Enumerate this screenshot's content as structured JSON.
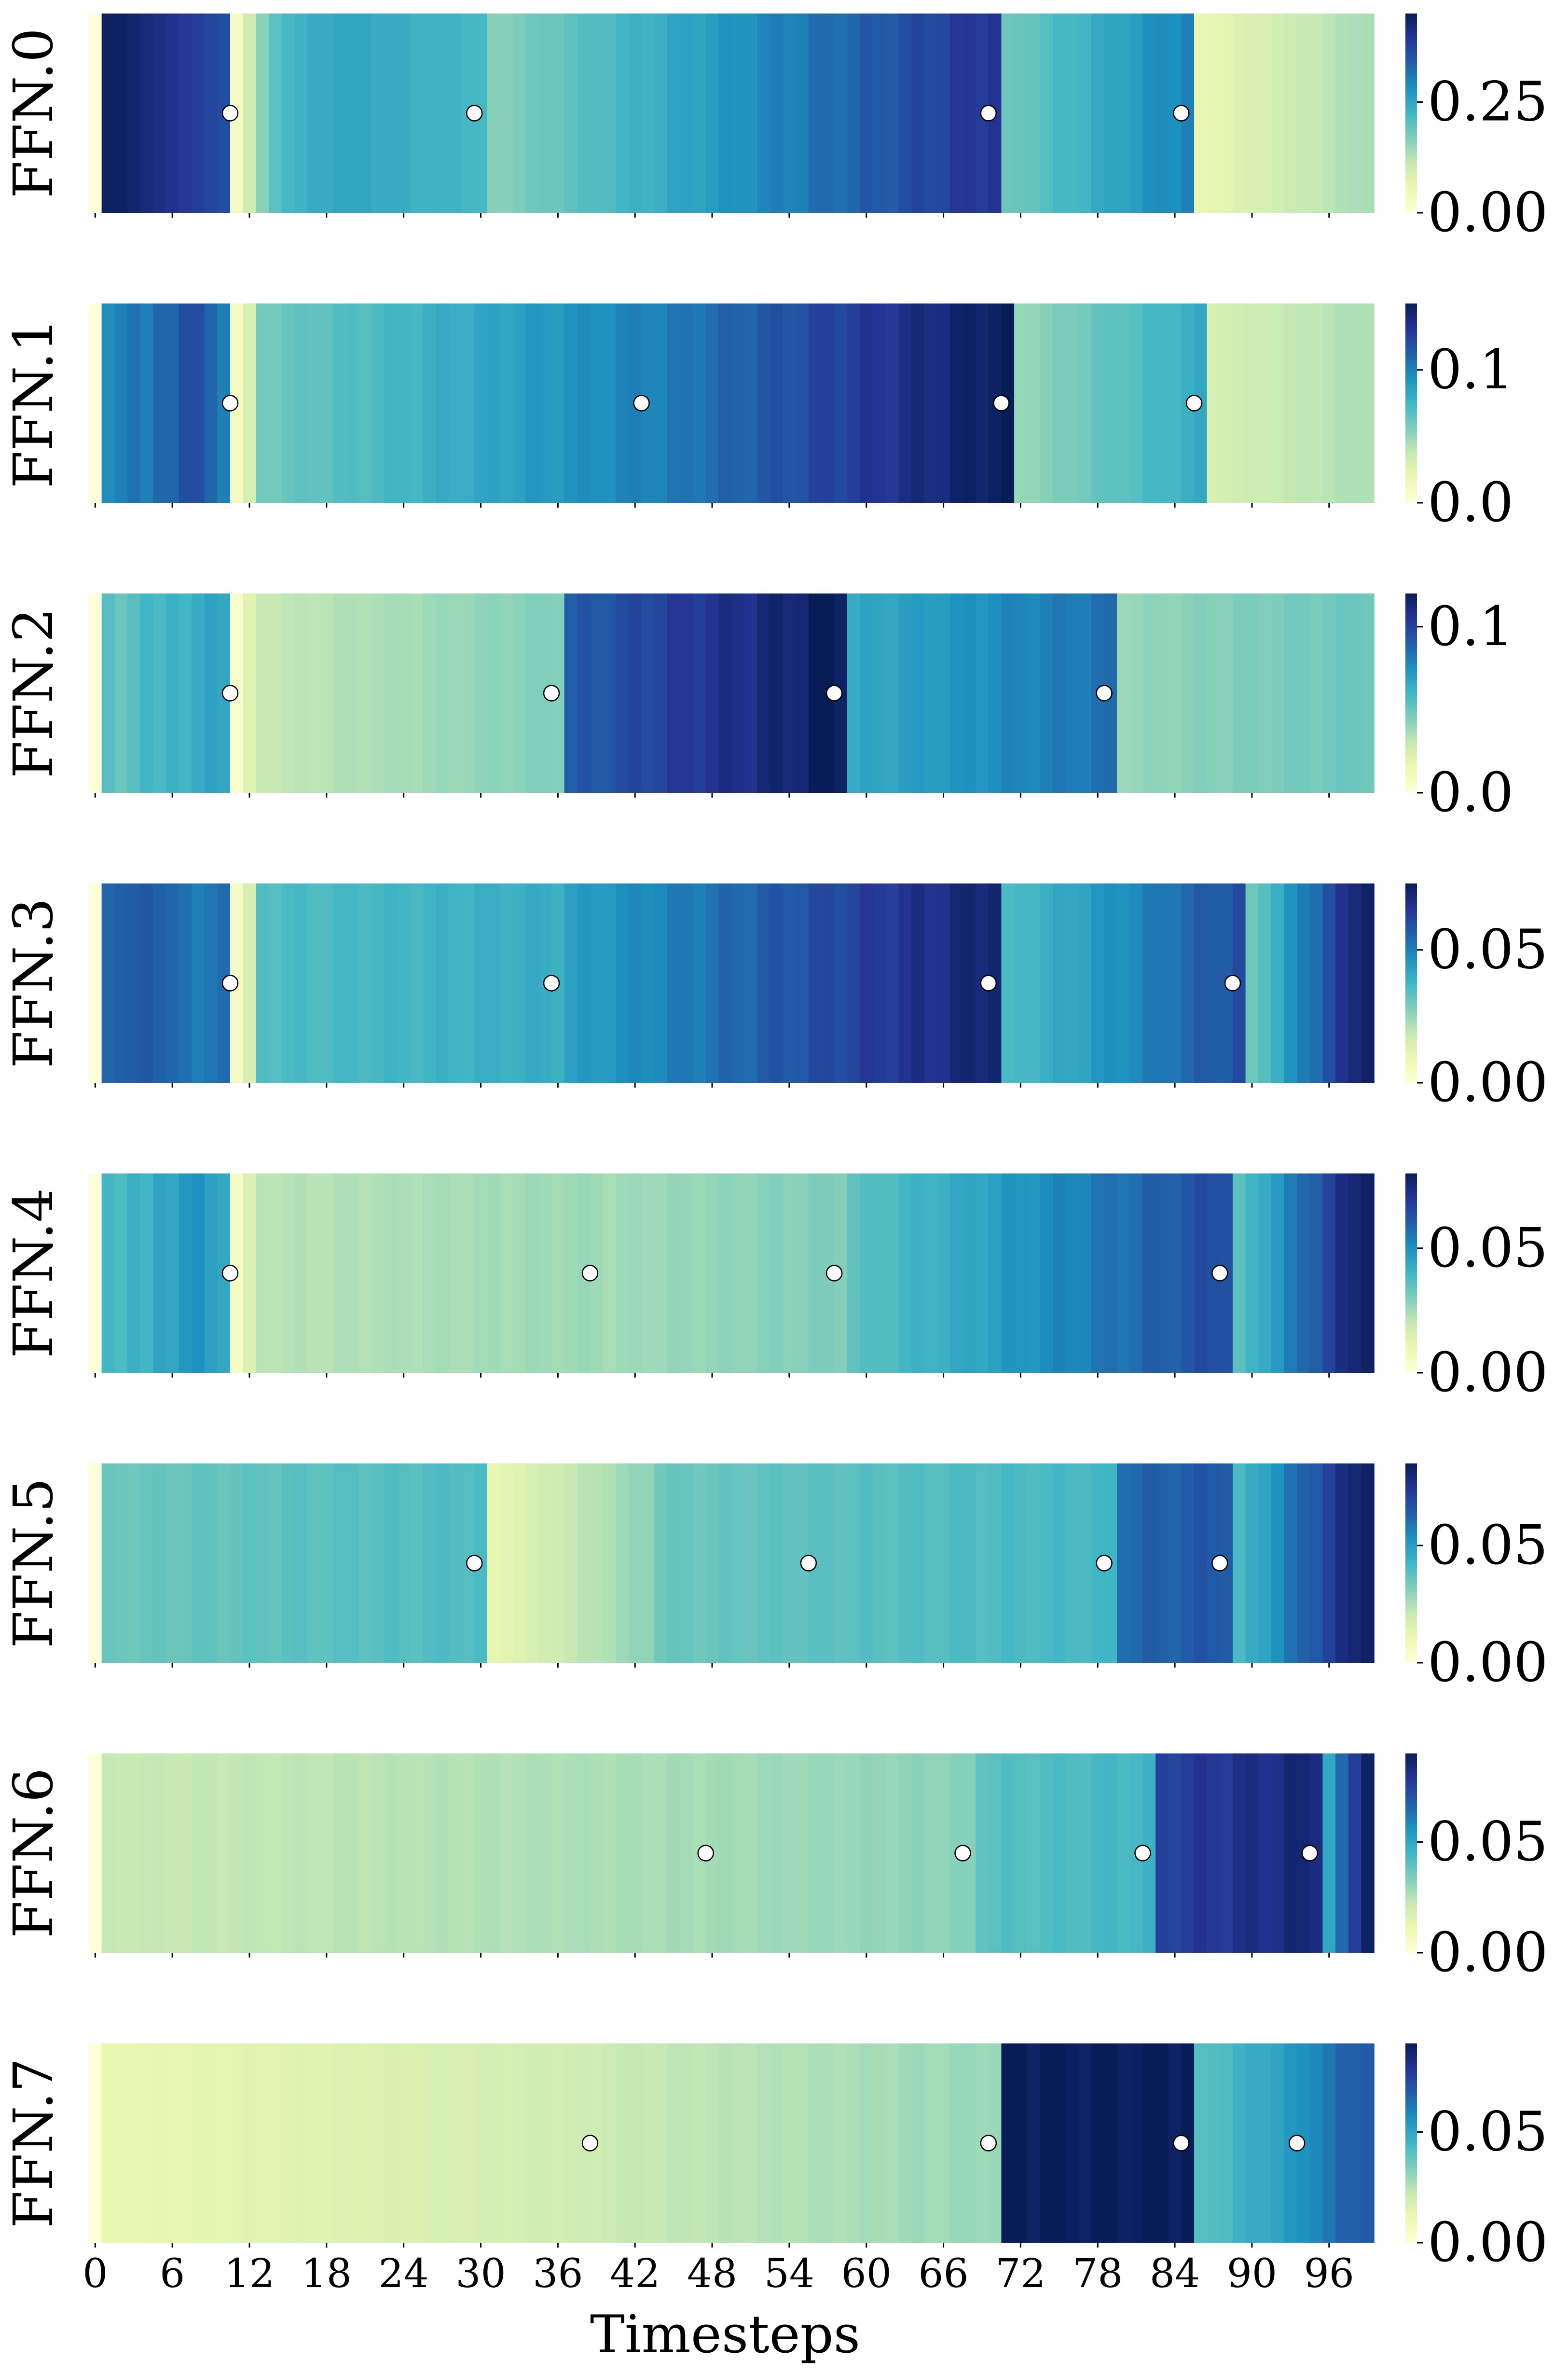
{
  "chart_data": {
    "type": "heatmap",
    "title": "",
    "xlabel": "Timesteps",
    "ylabel": "",
    "colormap": "YlGnBu",
    "x_range": [
      0,
      99
    ],
    "x_ticks": [
      0,
      6,
      12,
      18,
      24,
      30,
      36,
      42,
      48,
      54,
      60,
      66,
      72,
      78,
      84,
      90,
      96
    ],
    "x_tick_labels": [
      "0",
      "6",
      "12",
      "18",
      "24",
      "30",
      "36",
      "42",
      "48",
      "54",
      "60",
      "66",
      "72",
      "78",
      "84",
      "90",
      "96"
    ],
    "marker_style": "white circle with black edge",
    "rows": [
      {
        "label": "FFN.0",
        "vmin": 0,
        "vmax": 0.45,
        "colorbar_ticks": [
          0.0,
          0.25
        ],
        "colorbar_tick_labels": [
          "0.00",
          "0.25"
        ],
        "markers": [
          11,
          30,
          70,
          85
        ],
        "segments": [
          {
            "start": 0,
            "end": 0,
            "values": [
              0.0
            ]
          },
          {
            "start": 1,
            "end": 10,
            "values": [
              0.44,
              0.44,
              0.43,
              0.42,
              0.41,
              0.4,
              0.39,
              0.38,
              0.37,
              0.36
            ]
          },
          {
            "start": 11,
            "end": 12,
            "values": [
              0.03,
              0.1
            ]
          },
          {
            "start": 13,
            "end": 30,
            "values": [
              0.16,
              0.2,
              0.22,
              0.23,
              0.24,
              0.24,
              0.25,
              0.25,
              0.25,
              0.24,
              0.24,
              0.24,
              0.23,
              0.23,
              0.23,
              0.23,
              0.22,
              0.22
            ]
          },
          {
            "start": 31,
            "end": 70,
            "from": 0.16,
            "to": 0.4
          },
          {
            "start": 71,
            "end": 85,
            "from": 0.18,
            "to": 0.3
          },
          {
            "start": 86,
            "end": 99,
            "from": 0.06,
            "to": 0.14
          }
        ]
      },
      {
        "label": "FFN.1",
        "vmin": 0,
        "vmax": 0.15,
        "colorbar_ticks": [
          0.0,
          0.1
        ],
        "colorbar_tick_labels": [
          "0.0",
          "0.1"
        ],
        "markers": [
          11,
          43,
          71,
          86
        ],
        "segments": [
          {
            "start": 0,
            "end": 0,
            "values": [
              0.0
            ]
          },
          {
            "start": 1,
            "end": 10,
            "values": [
              0.095,
              0.1,
              0.105,
              0.1,
              0.11,
              0.11,
              0.12,
              0.12,
              0.11,
              0.1
            ]
          },
          {
            "start": 11,
            "end": 12,
            "values": [
              0.01,
              0.03
            ]
          },
          {
            "start": 13,
            "end": 43,
            "from": 0.06,
            "to": 0.1
          },
          {
            "start": 44,
            "end": 71,
            "from": 0.1,
            "to": 0.15
          },
          {
            "start": 72,
            "end": 86,
            "from": 0.05,
            "to": 0.08
          },
          {
            "start": 87,
            "end": 99,
            "from": 0.03,
            "to": 0.045
          }
        ]
      },
      {
        "label": "FFN.2",
        "vmin": 0,
        "vmax": 0.12,
        "colorbar_ticks": [
          0.0,
          0.1
        ],
        "colorbar_tick_labels": [
          "0.0",
          "0.1"
        ],
        "markers": [
          11,
          36,
          58,
          79
        ],
        "segments": [
          {
            "start": 0,
            "end": 0,
            "values": [
              0.0
            ]
          },
          {
            "start": 1,
            "end": 10,
            "values": [
              0.055,
              0.05,
              0.055,
              0.06,
              0.058,
              0.062,
              0.06,
              0.064,
              0.068,
              0.066
            ]
          },
          {
            "start": 11,
            "end": 12,
            "values": [
              0.005,
              0.02
            ]
          },
          {
            "start": 13,
            "end": 36,
            "from": 0.03,
            "to": 0.045
          },
          {
            "start": 37,
            "end": 58,
            "from": 0.09,
            "to": 0.12
          },
          {
            "start": 59,
            "end": 79,
            "from": 0.065,
            "to": 0.085
          },
          {
            "start": 80,
            "end": 99,
            "from": 0.04,
            "to": 0.05
          }
        ]
      },
      {
        "label": "FFN.3",
        "vmin": 0,
        "vmax": 0.075,
        "colorbar_ticks": [
          0.0,
          0.05
        ],
        "colorbar_tick_labels": [
          "0.00",
          "0.05"
        ],
        "markers": [
          11,
          36,
          70,
          89
        ],
        "segments": [
          {
            "start": 0,
            "end": 0,
            "values": [
              0.0
            ]
          },
          {
            "start": 1,
            "end": 10,
            "values": [
              0.055,
              0.056,
              0.057,
              0.058,
              0.056,
              0.055,
              0.053,
              0.05,
              0.052,
              0.054
            ]
          },
          {
            "start": 11,
            "end": 12,
            "values": [
              0.005,
              0.015
            ]
          },
          {
            "start": 13,
            "end": 36,
            "from": 0.035,
            "to": 0.04
          },
          {
            "start": 37,
            "end": 70,
            "from": 0.043,
            "to": 0.072
          },
          {
            "start": 71,
            "end": 89,
            "from": 0.035,
            "to": 0.06
          },
          {
            "start": 90,
            "end": 99,
            "from": 0.03,
            "to": 0.075
          }
        ]
      },
      {
        "label": "FFN.4",
        "vmin": 0,
        "vmax": 0.08,
        "colorbar_ticks": [
          0.0,
          0.05
        ],
        "colorbar_tick_labels": [
          "0.00",
          "0.05"
        ],
        "markers": [
          11,
          39,
          58,
          88
        ],
        "segments": [
          {
            "start": 0,
            "end": 0,
            "values": [
              0.0
            ]
          },
          {
            "start": 1,
            "end": 10,
            "values": [
              0.04,
              0.038,
              0.042,
              0.04,
              0.045,
              0.044,
              0.048,
              0.05,
              0.046,
              0.044
            ]
          },
          {
            "start": 11,
            "end": 12,
            "values": [
              0.005,
              0.015
            ]
          },
          {
            "start": 13,
            "end": 39,
            "from": 0.022,
            "to": 0.026
          },
          {
            "start": 40,
            "end": 58,
            "from": 0.025,
            "to": 0.03
          },
          {
            "start": 59,
            "end": 88,
            "from": 0.035,
            "to": 0.065
          },
          {
            "start": 89,
            "end": 99,
            "from": 0.035,
            "to": 0.08
          }
        ]
      },
      {
        "label": "FFN.5",
        "vmin": 0,
        "vmax": 0.085,
        "colorbar_ticks": [
          0.0,
          0.05
        ],
        "colorbar_tick_labels": [
          "0.00",
          "0.05"
        ],
        "markers": [
          30,
          56,
          79,
          88
        ],
        "segments": [
          {
            "start": 0,
            "end": 0,
            "values": [
              0.0
            ]
          },
          {
            "start": 1,
            "end": 30,
            "from": 0.035,
            "to": 0.04
          },
          {
            "start": 31,
            "end": 43,
            "from": 0.012,
            "to": 0.03
          },
          {
            "start": 44,
            "end": 79,
            "from": 0.035,
            "to": 0.042
          },
          {
            "start": 80,
            "end": 88,
            "from": 0.062,
            "to": 0.066
          },
          {
            "start": 89,
            "end": 99,
            "from": 0.04,
            "to": 0.085
          }
        ]
      },
      {
        "label": "FFN.6",
        "vmin": 0,
        "vmax": 0.09,
        "colorbar_ticks": [
          0.0,
          0.05
        ],
        "colorbar_tick_labels": [
          "0.00",
          "0.05"
        ],
        "markers": [
          48,
          68,
          82,
          95
        ],
        "segments": [
          {
            "start": 0,
            "end": 0,
            "values": [
              0.0
            ]
          },
          {
            "start": 1,
            "end": 48,
            "from": 0.022,
            "to": 0.028
          },
          {
            "start": 49,
            "end": 68,
            "from": 0.028,
            "to": 0.032
          },
          {
            "start": 69,
            "end": 82,
            "from": 0.04,
            "to": 0.045
          },
          {
            "start": 83,
            "end": 95,
            "from": 0.075,
            "to": 0.085
          },
          {
            "start": 96,
            "end": 99,
            "from": 0.05,
            "to": 0.09
          }
        ]
      },
      {
        "label": "FFN.7",
        "vmin": 0,
        "vmax": 0.09,
        "colorbar_ticks": [
          0.0,
          0.05
        ],
        "colorbar_tick_labels": [
          "0.00",
          "0.05"
        ],
        "markers": [
          39,
          70,
          85,
          94
        ],
        "segments": [
          {
            "start": 0,
            "end": 0,
            "values": [
              0.0
            ]
          },
          {
            "start": 1,
            "end": 39,
            "from": 0.012,
            "to": 0.02
          },
          {
            "start": 40,
            "end": 70,
            "from": 0.022,
            "to": 0.03
          },
          {
            "start": 71,
            "end": 85,
            "from": 0.09,
            "to": 0.09
          },
          {
            "start": 86,
            "end": 94,
            "from": 0.04,
            "to": 0.055
          },
          {
            "start": 95,
            "end": 99,
            "from": 0.06,
            "to": 0.07
          }
        ]
      }
    ]
  }
}
